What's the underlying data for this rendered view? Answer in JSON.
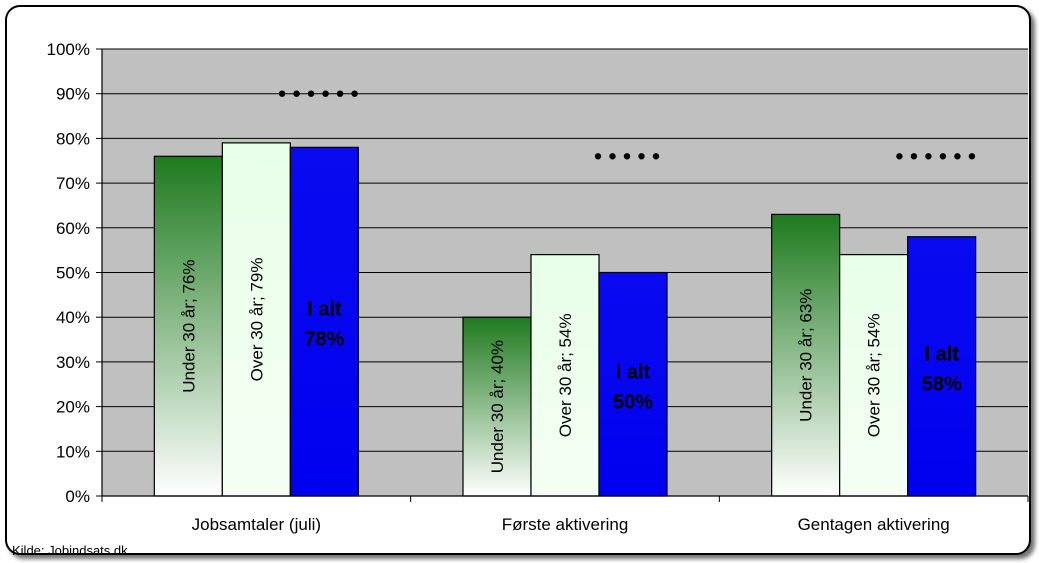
{
  "chart_data": {
    "type": "bar",
    "categories": [
      "Jobsamtaler (juli)",
      "Første aktivering",
      "Gentagen aktivering"
    ],
    "series": [
      {
        "values": [
          76,
          40,
          63
        ],
        "color": "#1e7a1e",
        "labels": [
          "Under 30 år; 76%",
          "Under 30 år; 40%",
          "Under 30 år; 63%"
        ],
        "label_style": "rotated"
      },
      {
        "values": [
          79,
          54,
          54
        ],
        "color": "#e8ffe8",
        "labels": [
          "Over 30 år; 79%",
          "Over 30 år; 54%",
          "Over 30 år; 54%"
        ],
        "label_style": "rotated"
      },
      {
        "values": [
          78,
          50,
          58
        ],
        "color": "#0a0af0",
        "labels": [
          [
            "I alt",
            "78%"
          ],
          [
            "I alt",
            "50%"
          ],
          [
            "I alt",
            "58%"
          ]
        ],
        "label_style": "bold"
      }
    ],
    "ytick_labels": [
      "0%",
      "10%",
      "20%",
      "30%",
      "40%",
      "50%",
      "60%",
      "70%",
      "80%",
      "90%",
      "100%"
    ],
    "ylim": [
      0,
      100
    ],
    "yticks": [
      0,
      10,
      20,
      30,
      40,
      50,
      60,
      70,
      80,
      90,
      100
    ],
    "grid": true,
    "plot_background": "#c0c0c0",
    "annotations": [
      {
        "category": 0,
        "y": 90,
        "dots": 6
      },
      {
        "category": 1,
        "y": 76,
        "dots": 5
      },
      {
        "category": 2,
        "y": 76,
        "dots": 6
      }
    ]
  },
  "source": "Kilde: Jobindsats.dk"
}
